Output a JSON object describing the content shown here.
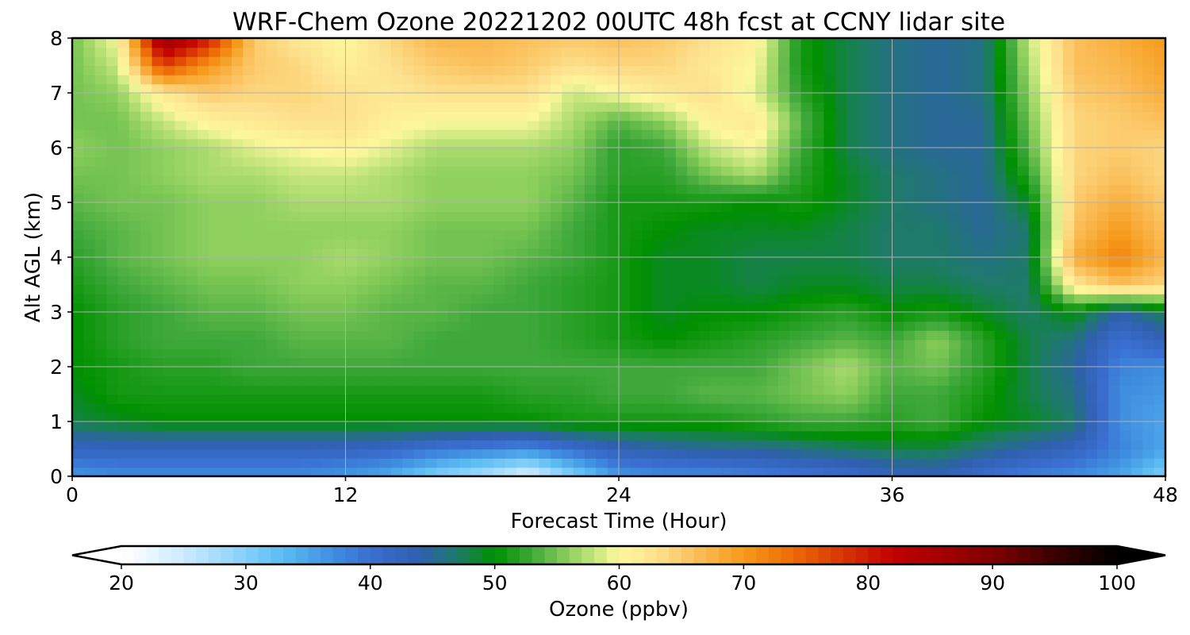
{
  "chart_data": {
    "type": "heatmap",
    "title": "WRF-Chem Ozone  20221202 00UTC 48h fcst at CCNY lidar site",
    "xlabel": "Forecast Time (Hour)",
    "ylabel": "Alt AGL (km)",
    "xlim": [
      0,
      48
    ],
    "ylim": [
      0,
      8
    ],
    "xticks": [
      0,
      12,
      24,
      36,
      48
    ],
    "yticks": [
      0,
      1,
      2,
      3,
      4,
      5,
      6,
      7,
      8
    ],
    "grid": true,
    "x": [
      0,
      2,
      4,
      6,
      8,
      10,
      12,
      14,
      16,
      18,
      20,
      22,
      24,
      26,
      28,
      30,
      32,
      34,
      36,
      38,
      40,
      42,
      44,
      46,
      48
    ],
    "y": [
      0,
      0.5,
      1,
      1.5,
      2,
      2.5,
      3,
      3.5,
      4,
      4.5,
      5,
      5.5,
      6,
      6.5,
      7,
      7.5,
      8
    ],
    "units": "ppbv",
    "z": [
      [
        36,
        37,
        37,
        37,
        37,
        37,
        36,
        34,
        30,
        27,
        23,
        30,
        36,
        37,
        37,
        38,
        39,
        40,
        42,
        43,
        40,
        38,
        37,
        35,
        30
      ],
      [
        42,
        42,
        42,
        42,
        42,
        42,
        42,
        41,
        39,
        38,
        37,
        40,
        43,
        44,
        45,
        45,
        46,
        47,
        48,
        48,
        46,
        44,
        42,
        38,
        35
      ],
      [
        48,
        49,
        50,
        50,
        50,
        50,
        50,
        50,
        50,
        50,
        50,
        51,
        51,
        51,
        51,
        52,
        53,
        53,
        52,
        53,
        50,
        49,
        47,
        37,
        35
      ],
      [
        49,
        51,
        51,
        51,
        51,
        51,
        51,
        51,
        51,
        51,
        52,
        52,
        53,
        53,
        54,
        54,
        55,
        56,
        53,
        53,
        51,
        48,
        46,
        37,
        36
      ],
      [
        50,
        51,
        52,
        52,
        53,
        53,
        53,
        53,
        53,
        53,
        53,
        53,
        53,
        53,
        53,
        53,
        55,
        57,
        54,
        55,
        52,
        48,
        45,
        38,
        37
      ],
      [
        50,
        52,
        53,
        53,
        53,
        54,
        54,
        54,
        53,
        53,
        53,
        52,
        51,
        50,
        51,
        52,
        53,
        54,
        53,
        56,
        52,
        48,
        46,
        40,
        43
      ],
      [
        50,
        52,
        53,
        54,
        54,
        55,
        55,
        54,
        54,
        53,
        53,
        52,
        51,
        49,
        50,
        50,
        51,
        52,
        50,
        51,
        49,
        47,
        50,
        44,
        48
      ],
      [
        51,
        53,
        54,
        55,
        55,
        56,
        56,
        55,
        54,
        54,
        53,
        52,
        51,
        49,
        49,
        48,
        49,
        49,
        48,
        48,
        47,
        47,
        62,
        66,
        64
      ],
      [
        52,
        54,
        55,
        56,
        56,
        56,
        57,
        56,
        55,
        55,
        54,
        53,
        51,
        49,
        49,
        48,
        48,
        48,
        47,
        47,
        46,
        47,
        68,
        72,
        67
      ],
      [
        53,
        54,
        55,
        56,
        56,
        56,
        56,
        56,
        55,
        55,
        55,
        53,
        51,
        50,
        49,
        49,
        49,
        48,
        47,
        47,
        45,
        47,
        66,
        70,
        66
      ],
      [
        54,
        55,
        55,
        56,
        56,
        57,
        57,
        57,
        56,
        56,
        56,
        54,
        51,
        51,
        51,
        50,
        51,
        49,
        47,
        46,
        45,
        49,
        65,
        68,
        65
      ],
      [
        55,
        55,
        56,
        57,
        57,
        58,
        58,
        57,
        56,
        56,
        56,
        55,
        52,
        52,
        55,
        57,
        52,
        49,
        47,
        46,
        45,
        52,
        64,
        66,
        64
      ],
      [
        56,
        55,
        56,
        57,
        59,
        60,
        61,
        59,
        57,
        57,
        57,
        56,
        52,
        53,
        58,
        60,
        53,
        48,
        46,
        45,
        45,
        54,
        64,
        65,
        64
      ],
      [
        55,
        55,
        58,
        61,
        62,
        63,
        63,
        61,
        60,
        60,
        60,
        57,
        54,
        56,
        61,
        62,
        54,
        48,
        46,
        45,
        45,
        55,
        64,
        65,
        66
      ],
      [
        55,
        56,
        62,
        65,
        64,
        64,
        63,
        62,
        63,
        63,
        63,
        58,
        60,
        62,
        63,
        59,
        52,
        48,
        46,
        45,
        46,
        56,
        65,
        66,
        68
      ],
      [
        55,
        58,
        77,
        70,
        65,
        64,
        61,
        63,
        65,
        66,
        65,
        63,
        64,
        64,
        62,
        60,
        51,
        48,
        46,
        45,
        46,
        57,
        66,
        67,
        69
      ],
      [
        55,
        60,
        88,
        80,
        65,
        62,
        60,
        64,
        67,
        67,
        66,
        65,
        66,
        65,
        63,
        61,
        51,
        48,
        46,
        45,
        46,
        58,
        66,
        68,
        70
      ]
    ],
    "colorbar": {
      "label": "Ozone  (ppbv)",
      "min": 20,
      "max": 100,
      "ticks": [
        20,
        30,
        40,
        50,
        60,
        70,
        80,
        90,
        100
      ],
      "extend": "both",
      "stops": [
        {
          "value": 20,
          "color": "#ffffff"
        },
        {
          "value": 22,
          "color": "#eef8ff"
        },
        {
          "value": 26,
          "color": "#bfe6ff"
        },
        {
          "value": 30,
          "color": "#85cffa"
        },
        {
          "value": 33,
          "color": "#5bbcf2"
        },
        {
          "value": 37,
          "color": "#3f8ee0"
        },
        {
          "value": 40,
          "color": "#3a6ed0"
        },
        {
          "value": 44,
          "color": "#2f5fae"
        },
        {
          "value": 47,
          "color": "#1e7a6a"
        },
        {
          "value": 50,
          "color": "#009000"
        },
        {
          "value": 53,
          "color": "#3ea83a"
        },
        {
          "value": 56,
          "color": "#8fd05e"
        },
        {
          "value": 58,
          "color": "#c6e67c"
        },
        {
          "value": 60,
          "color": "#fdf89c"
        },
        {
          "value": 63,
          "color": "#fde18e"
        },
        {
          "value": 66,
          "color": "#fbc05c"
        },
        {
          "value": 70,
          "color": "#f59a1b"
        },
        {
          "value": 74,
          "color": "#ee6a06"
        },
        {
          "value": 78,
          "color": "#d73404"
        },
        {
          "value": 82,
          "color": "#c10000"
        },
        {
          "value": 86,
          "color": "#a40000"
        },
        {
          "value": 90,
          "color": "#7f0000"
        },
        {
          "value": 95,
          "color": "#3a0000"
        },
        {
          "value": 100,
          "color": "#000000"
        }
      ]
    }
  }
}
